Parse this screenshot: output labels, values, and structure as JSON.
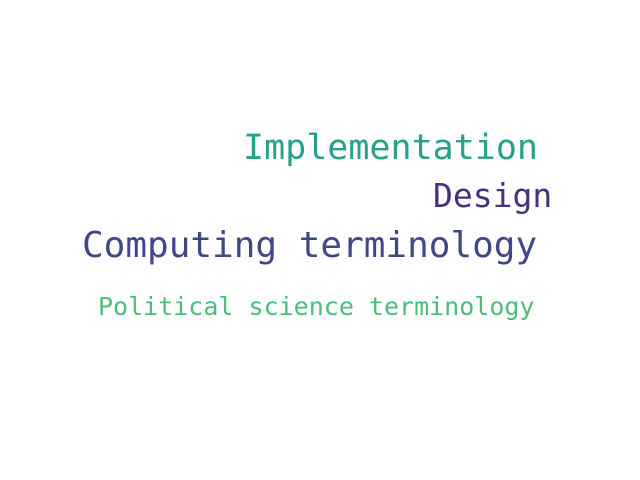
{
  "word_cloud": {
    "words": [
      {
        "text": "Implementation",
        "color": "#26a18a"
      },
      {
        "text": "Design",
        "color": "#482f7a"
      },
      {
        "text": "Computing terminology",
        "color": "#404687"
      },
      {
        "text": "Political science terminology",
        "color": "#49bf7a"
      }
    ]
  }
}
